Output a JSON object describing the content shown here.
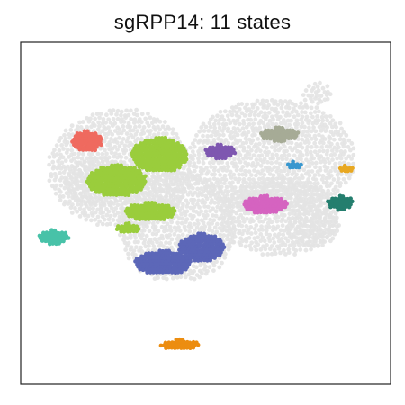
{
  "chart_data": {
    "type": "scatter",
    "title": "sgRPP14: 11 states",
    "xlabel": "",
    "ylabel": "",
    "xlim": [
      0,
      100
    ],
    "ylim": [
      0,
      100
    ],
    "grid": false,
    "axes_ticks": false,
    "background_points": {
      "color": "#e3e3e3",
      "regions": [
        {
          "x": [
            8,
            46
          ],
          "y": [
            46,
            80
          ]
        },
        {
          "x": [
            27,
            58
          ],
          "y": [
            30,
            62
          ]
        },
        {
          "x": [
            46,
            90
          ],
          "y": [
            50,
            83
          ]
        },
        {
          "x": [
            54,
            86
          ],
          "y": [
            38,
            60
          ]
        },
        {
          "x": [
            76,
            84
          ],
          "y": [
            82,
            88
          ]
        },
        {
          "x": [
            12,
            30
          ],
          "y": [
            52,
            66
          ]
        },
        {
          "x": [
            72,
            86
          ],
          "y": [
            40,
            52
          ]
        }
      ]
    },
    "series": [
      {
        "color": "#ef6a5f",
        "regions": [
          {
            "x": [
              14,
              22
            ],
            "y": [
              68,
              74
            ]
          }
        ]
      },
      {
        "color": "#9acd3c",
        "regions": [
          {
            "x": [
              30,
              45
            ],
            "y": [
              62,
              72
            ]
          },
          {
            "x": [
              18,
              34
            ],
            "y": [
              55,
              64
            ]
          },
          {
            "x": [
              28,
              42
            ],
            "y": [
              48,
              53
            ]
          },
          {
            "x": [
              26,
              32
            ],
            "y": [
              44,
              47
            ]
          }
        ]
      },
      {
        "color": "#48c2a8",
        "regions": [
          {
            "x": [
              5,
              13
            ],
            "y": [
              41,
              45
            ]
          }
        ]
      },
      {
        "color": "#7e57b0",
        "regions": [
          {
            "x": [
              50,
              58
            ],
            "y": [
              66,
              70
            ]
          }
        ]
      },
      {
        "color": "#a6ab96",
        "regions": [
          {
            "x": [
              65,
              75
            ],
            "y": [
              71,
              75
            ]
          }
        ]
      },
      {
        "color": "#3897cf",
        "regions": [
          {
            "x": [
              72,
              76
            ],
            "y": [
              63,
              65
            ]
          }
        ]
      },
      {
        "color": "#e8a822",
        "regions": [
          {
            "x": [
              86,
              90
            ],
            "y": [
              62,
              64
            ]
          }
        ]
      },
      {
        "color": "#d563c0",
        "regions": [
          {
            "x": [
              60,
              72
            ],
            "y": [
              50,
              55
            ]
          }
        ]
      },
      {
        "color": "#247e6e",
        "regions": [
          {
            "x": [
              83,
              90
            ],
            "y": [
              51,
              55
            ]
          }
        ]
      },
      {
        "color": "#5c67b8",
        "regions": [
          {
            "x": [
              31,
              46
            ],
            "y": [
              32,
              39
            ]
          },
          {
            "x": [
              43,
              55
            ],
            "y": [
              36,
              44
            ]
          }
        ]
      },
      {
        "color": "#ec8d10",
        "regions": [
          {
            "x": [
              38,
              48
            ],
            "y": [
              10,
              13
            ]
          }
        ]
      }
    ]
  }
}
